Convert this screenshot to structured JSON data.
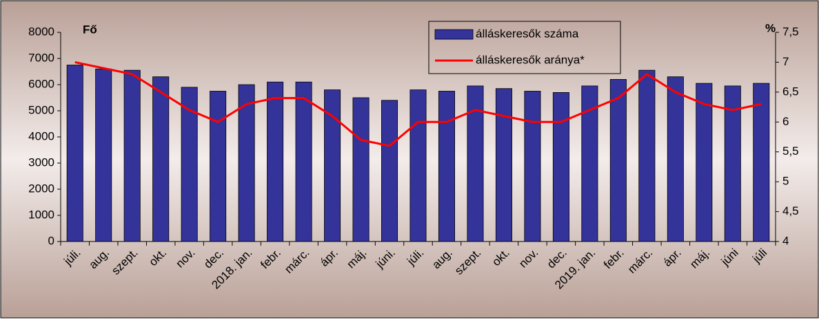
{
  "chart_data": {
    "type": "bar-line",
    "y_label": "Fő",
    "y2_label": "%",
    "categories": [
      "júli.",
      "aug.",
      "szept.",
      "okt.",
      "nov.",
      "dec.",
      "2018. jan.",
      "febr.",
      "márc.",
      "ápr.",
      "máj.",
      "júni.",
      "júli.",
      "aug.",
      "szept.",
      "okt.",
      "nov.",
      "dec.",
      "2019. jan.",
      "febr.",
      "márc.",
      "ápr.",
      "máj.",
      "júni",
      "júli"
    ],
    "series": [
      {
        "name": "álláskeresők száma",
        "color": "#333399",
        "type": "bar",
        "values": [
          6750,
          6600,
          6550,
          6300,
          5900,
          5750,
          6000,
          6100,
          6100,
          5800,
          5500,
          5400,
          5800,
          5750,
          5950,
          5850,
          5750,
          5700,
          5950,
          6200,
          6550,
          6300,
          6050,
          5950,
          6050
        ]
      },
      {
        "name": "álláskeresők aránya*",
        "color": "#ff0000",
        "type": "line",
        "axis": "y2",
        "values": [
          7.0,
          6.9,
          6.8,
          6.5,
          6.2,
          6.0,
          6.3,
          6.4,
          6.4,
          6.1,
          5.7,
          5.6,
          6.0,
          6.0,
          6.2,
          6.1,
          6.0,
          6.0,
          6.2,
          6.4,
          6.8,
          6.5,
          6.3,
          6.2,
          6.3
        ]
      }
    ],
    "ylim": [
      0,
      8000
    ],
    "yticks": [
      0,
      1000,
      2000,
      3000,
      4000,
      5000,
      6000,
      7000,
      8000
    ],
    "y2lim": [
      4,
      7.5
    ],
    "y2ticks": [
      4,
      {
        "value": 4.5,
        "label": "4,5"
      },
      5,
      {
        "value": 5.5,
        "label": "5,5"
      },
      6,
      {
        "value": 6.5,
        "label": "6,5"
      },
      7,
      {
        "value": 7.5,
        "label": "7,5"
      }
    ],
    "legend": "top"
  }
}
